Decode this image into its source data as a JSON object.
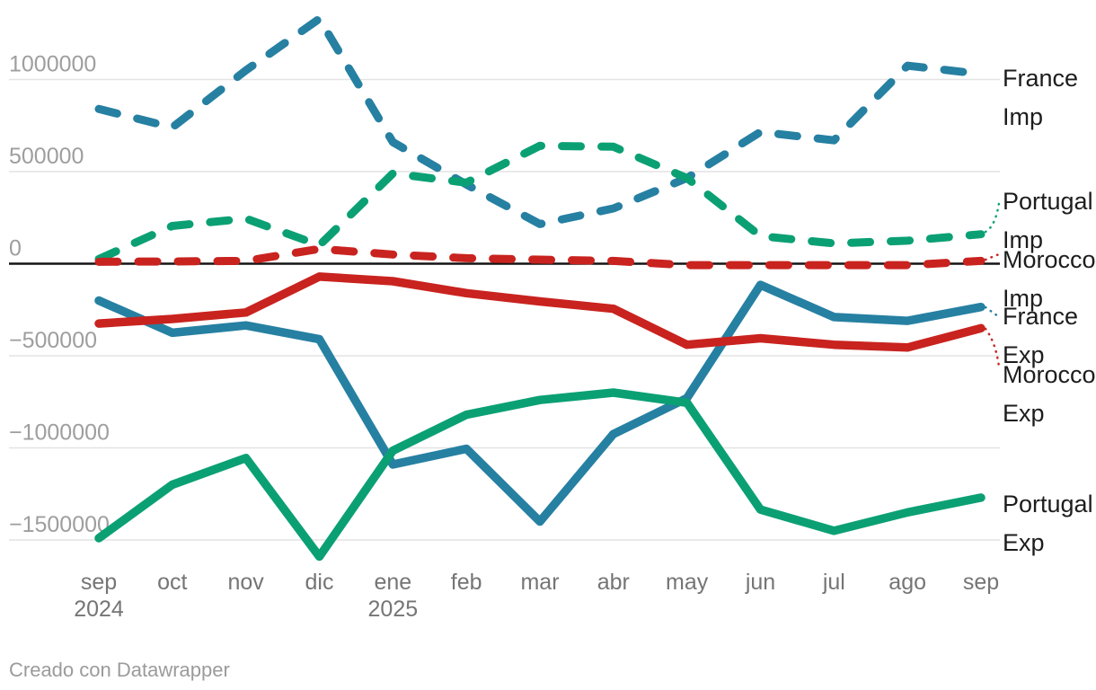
{
  "footer": {
    "credit": "Creado con Datawrapper"
  },
  "chart_data": {
    "type": "line",
    "title": "",
    "xlabel": "",
    "ylabel": "",
    "grid": true,
    "legend_position": "right",
    "ylim": [
      -1750000,
      1400000
    ],
    "x_labels": [
      {
        "month": "sep",
        "year": "2024"
      },
      {
        "month": "oct"
      },
      {
        "month": "nov"
      },
      {
        "month": "dic"
      },
      {
        "month": "ene",
        "year": "2025"
      },
      {
        "month": "feb"
      },
      {
        "month": "mar"
      },
      {
        "month": "abr"
      },
      {
        "month": "may"
      },
      {
        "month": "jun"
      },
      {
        "month": "jul"
      },
      {
        "month": "ago"
      },
      {
        "month": "sep"
      }
    ],
    "y_ticks": [
      {
        "value": 1000000,
        "label": "1000000"
      },
      {
        "value": 500000,
        "label": "500000"
      },
      {
        "value": 0,
        "label": "0"
      },
      {
        "value": -500000,
        "label": "−500000"
      },
      {
        "value": -1000000,
        "label": "−1000000"
      },
      {
        "value": -1500000,
        "label": "−1500000"
      }
    ],
    "series": [
      {
        "name": "France Imp",
        "label_lines": [
          "France",
          "Imp"
        ],
        "style": "dashed",
        "color": "#2680a2",
        "values": [
          840000,
          740000,
          1050000,
          1330000,
          660000,
          430000,
          215000,
          300000,
          465000,
          715000,
          670000,
          1075000,
          1030000
        ]
      },
      {
        "name": "Portugal Imp",
        "label_lines": [
          "Portugal",
          "Imp"
        ],
        "style": "dashed",
        "color": "#0ba074",
        "values": [
          25000,
          205000,
          245000,
          100000,
          490000,
          440000,
          640000,
          635000,
          465000,
          150000,
          110000,
          125000,
          160000
        ]
      },
      {
        "name": "Morocco Imp",
        "label_lines": [
          "Morocco",
          "Imp"
        ],
        "style": "dashed",
        "color": "#c9231f",
        "values": [
          10000,
          12000,
          15000,
          80000,
          50000,
          30000,
          22000,
          15000,
          -8000,
          -8000,
          -8000,
          -8000,
          15000
        ]
      },
      {
        "name": "France Exp",
        "label_lines": [
          "France",
          "Exp"
        ],
        "style": "solid",
        "color": "#2680a2",
        "values": [
          -200000,
          -375000,
          -335000,
          -410000,
          -1090000,
          -1005000,
          -1400000,
          -925000,
          -730000,
          -115000,
          -290000,
          -310000,
          -235000
        ]
      },
      {
        "name": "Morocco Exp",
        "label_lines": [
          "Morocco",
          "Exp"
        ],
        "style": "solid",
        "color": "#c9231f",
        "values": [
          -325000,
          -300000,
          -265000,
          -70000,
          -95000,
          -160000,
          -205000,
          -245000,
          -440000,
          -405000,
          -440000,
          -455000,
          -350000
        ]
      },
      {
        "name": "Portugal Exp",
        "label_lines": [
          "Portugal",
          "Exp"
        ],
        "style": "solid",
        "color": "#0ba074",
        "values": [
          -1490000,
          -1200000,
          -1055000,
          -1590000,
          -1015000,
          -820000,
          -740000,
          -700000,
          -755000,
          -1335000,
          -1450000,
          -1350000,
          -1270000
        ]
      }
    ],
    "colors": {
      "blue": "#2680a2",
      "green": "#0ba074",
      "red": "#c9231f",
      "gridline": "#e3e3e3",
      "zero_line": "#141414",
      "y_tick_text": "#9e9e9e",
      "x_tick_text": "#757575",
      "label_text": "#1d1d1d",
      "credit_text": "#9b9b9b"
    }
  }
}
